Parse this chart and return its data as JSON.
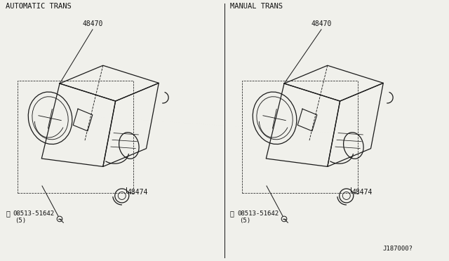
{
  "bg_color": "#f0f0eb",
  "line_color": "#1a1a1a",
  "text_color": "#111111",
  "left_label": "AUTOMATIC TRANS",
  "right_label": "MANUAL TRANS",
  "part_number_top": "48470",
  "part_number_bottom": "48474",
  "screw_label": "08513-51642",
  "screw_subtext": "(5)",
  "diagram_id": "J187000?",
  "font_size_label": 7.5,
  "font_size_part": 7.0,
  "font_size_id": 6.5,
  "font_size_screw": 6.5
}
